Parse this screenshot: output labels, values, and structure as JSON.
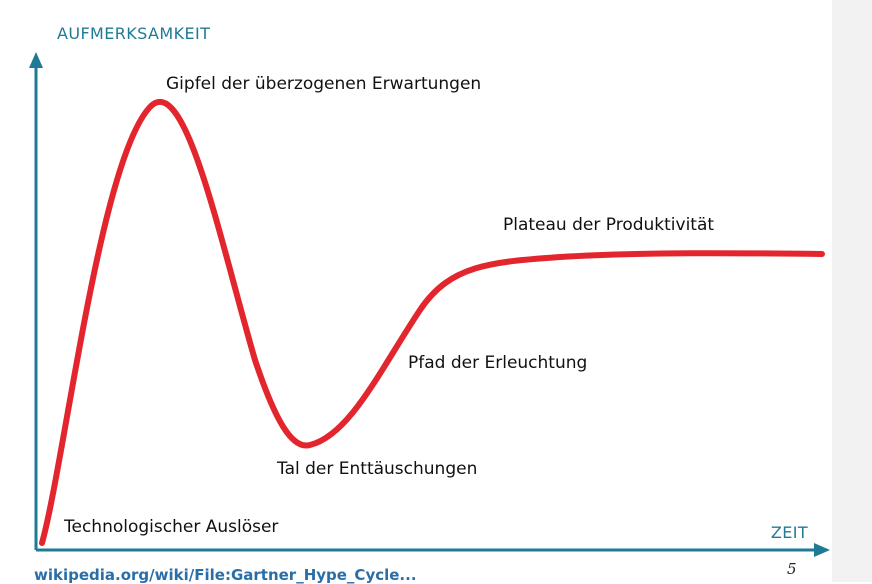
{
  "diagram": {
    "y_axis_label": "AUFMERKSAMKEIT",
    "x_axis_label": "ZEIT",
    "phases": [
      "Technologischer Auslöser",
      "Gipfel der überzogenen Erwartungen",
      "Tal der Enttäuschungen",
      "Pfad der Erleuchtung",
      "Plateau der Produktivität"
    ]
  },
  "colors": {
    "curve": "#e3262d",
    "axis": "#1f7a96"
  },
  "footer": {
    "link_text": "wikipedia.org/wiki/File:Gartner_Hype_Cycle...",
    "page_marker": "5"
  }
}
